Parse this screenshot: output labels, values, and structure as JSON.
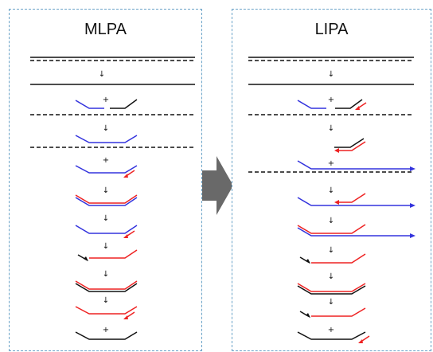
{
  "panels": {
    "left": {
      "title": "MLPA"
    },
    "right": {
      "title": "LIPA"
    }
  },
  "colors": {
    "probe": "#3333dd",
    "extension": "#ee2222",
    "template": "#111111",
    "panel_border": "#6aa3c8",
    "transition_arrow": "#696969"
  },
  "symbols": {
    "plus": "+",
    "step_arrow": "↓"
  },
  "icons": {
    "transition": "right-arrow-icon"
  }
}
